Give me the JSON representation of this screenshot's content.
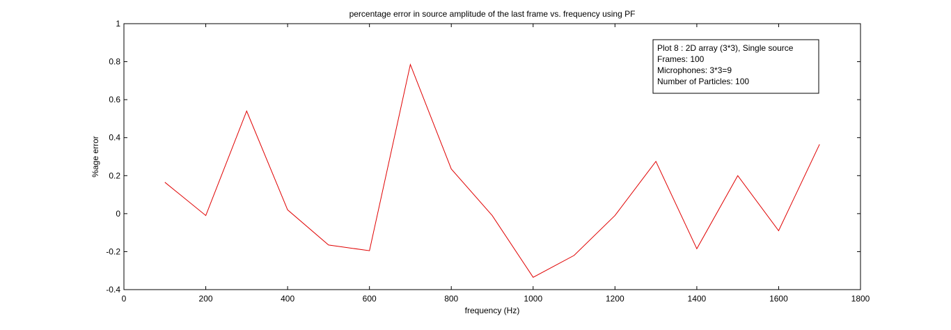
{
  "chart_data": {
    "type": "line",
    "title": "percentage error in source amplitude of the last frame vs. frequency using PF",
    "xlabel": "frequency (Hz)",
    "ylabel": "%age error",
    "xlim": [
      0,
      1800
    ],
    "ylim": [
      -0.4,
      1
    ],
    "xticks": [
      0,
      200,
      400,
      600,
      800,
      1000,
      1200,
      1400,
      1600,
      1800
    ],
    "xtick_labels": [
      "0",
      "200",
      "400",
      "600",
      "800",
      "1000",
      "1200",
      "1400",
      "1600",
      "1800"
    ],
    "yticks": [
      -0.4,
      -0.2,
      0,
      0.2,
      0.4,
      0.6,
      0.8,
      1
    ],
    "ytick_labels": [
      "-0.4",
      "-0.2",
      "0",
      "0.2",
      "0.4",
      "0.6",
      "0.8",
      "1"
    ],
    "grid": false,
    "legend_position": "top-right",
    "series": [
      {
        "color": "#e00000",
        "x": [
          100,
          200,
          300,
          400,
          500,
          600,
          700,
          800,
          900,
          1000,
          1100,
          1200,
          1300,
          1400,
          1500,
          1600,
          1700
        ],
        "y": [
          0.165,
          -0.01,
          0.54,
          0.02,
          -0.165,
          -0.195,
          0.785,
          0.235,
          -0.01,
          -0.335,
          -0.22,
          -0.01,
          0.275,
          -0.185,
          0.2,
          -0.09,
          0.365
        ]
      }
    ],
    "annotation_lines": [
      "Plot 8 : 2D array (3*3), Single source",
      "Frames: 100",
      "Microphones: 3*3=9",
      "Number of Particles: 100"
    ]
  }
}
